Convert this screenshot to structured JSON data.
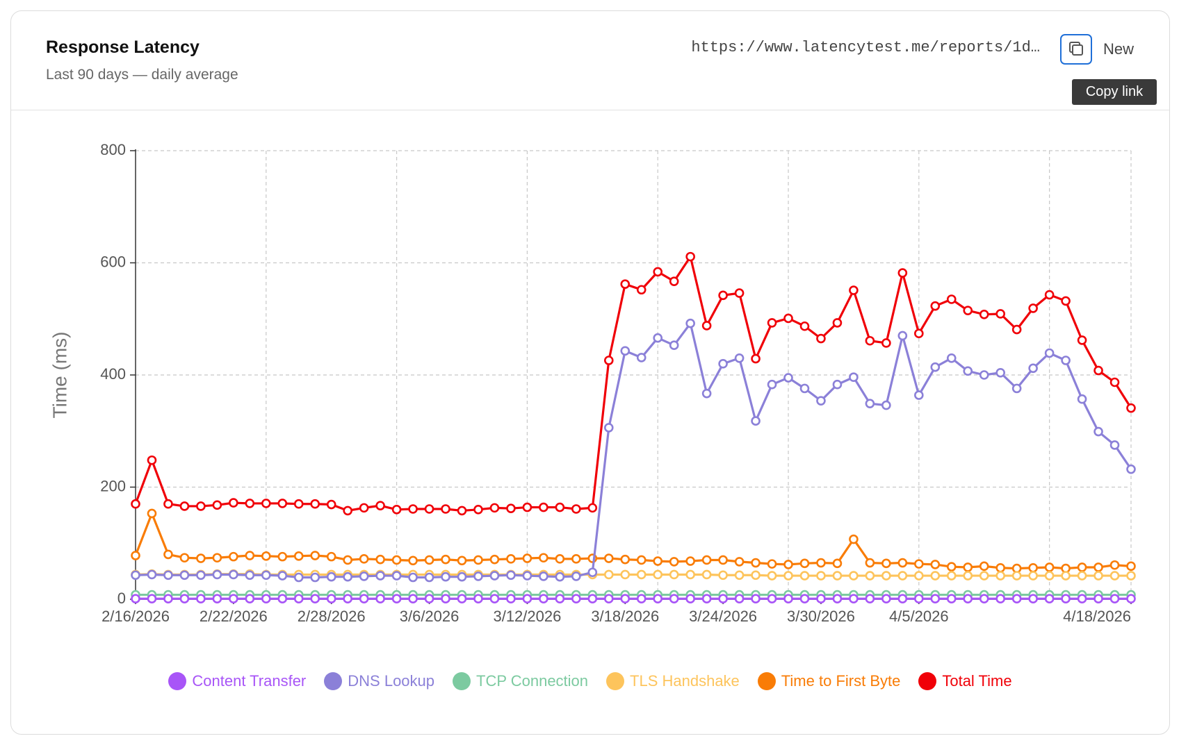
{
  "header": {
    "title": "Response Latency",
    "subtitle": "Last 90 days — daily average",
    "url": "https://www.latencytest.me/reports/1d…",
    "new_label": "New",
    "tooltip": "Copy link"
  },
  "chart_data": {
    "type": "line",
    "y_label": "Time (ms)",
    "categories": [
      "2/16/2026",
      null,
      null,
      null,
      null,
      null,
      "2/22/2026",
      null,
      null,
      null,
      null,
      null,
      "2/28/2026",
      null,
      null,
      null,
      null,
      null,
      "3/6/2026",
      null,
      null,
      null,
      null,
      null,
      "3/12/2026",
      null,
      null,
      null,
      null,
      null,
      "3/18/2026",
      null,
      null,
      null,
      null,
      null,
      "3/24/2026",
      null,
      null,
      null,
      null,
      null,
      "3/30/2026",
      null,
      null,
      null,
      null,
      null,
      "4/5/2026",
      null,
      null,
      null,
      null,
      null,
      null,
      null,
      null,
      null,
      null,
      null,
      null,
      "4/18/2026"
    ],
    "ylim": [
      0,
      800
    ],
    "yticks": [
      0,
      200,
      400,
      600,
      800
    ],
    "grid": true,
    "legend": "bottom",
    "series": [
      {
        "name": "Content Transfer",
        "color": "#a855f7",
        "values": [
          1,
          1,
          1,
          1,
          1,
          1,
          1,
          1,
          1,
          1,
          1,
          1,
          1,
          1,
          1,
          1,
          1,
          1,
          1,
          1,
          1,
          1,
          1,
          1,
          1,
          1,
          1,
          1,
          1,
          1,
          1,
          1,
          1,
          1,
          1,
          1,
          1,
          1,
          1,
          1,
          1,
          1,
          1,
          1,
          1,
          1,
          1,
          1,
          1,
          1,
          1,
          1,
          1,
          1,
          1,
          1,
          1,
          1,
          1,
          1,
          1,
          1
        ]
      },
      {
        "name": "DNS Lookup",
        "color": "#8b80d8",
        "values": [
          43,
          44,
          43,
          43,
          43,
          44,
          44,
          43,
          43,
          42,
          39,
          39,
          40,
          40,
          41,
          42,
          42,
          39,
          39,
          40,
          40,
          41,
          42,
          43,
          42,
          41,
          40,
          41,
          48,
          306,
          443,
          431,
          466,
          453,
          492,
          367,
          420,
          430,
          318,
          383,
          395,
          376,
          354,
          383,
          396,
          349,
          346,
          470,
          364,
          414,
          430,
          407,
          400,
          404,
          376,
          412,
          439,
          426,
          357,
          299,
          275,
          232
        ]
      },
      {
        "name": "TCP Connection",
        "color": "#7ccaa0",
        "values": [
          8,
          8,
          8,
          8,
          8,
          8,
          8,
          8,
          8,
          8,
          8,
          8,
          8,
          8,
          8,
          8,
          8,
          8,
          8,
          8,
          8,
          8,
          8,
          8,
          8,
          8,
          8,
          8,
          8,
          8,
          8,
          8,
          8,
          8,
          8,
          8,
          8,
          8,
          8,
          8,
          8,
          8,
          8,
          8,
          8,
          8,
          8,
          8,
          8,
          8,
          8,
          8,
          8,
          8,
          8,
          8,
          8,
          8,
          8,
          8,
          8,
          8
        ]
      },
      {
        "name": "TLS Handshake",
        "color": "#fdc45c",
        "values": [
          44,
          45,
          44,
          44,
          44,
          45,
          45,
          45,
          44,
          44,
          44,
          44,
          44,
          44,
          44,
          44,
          44,
          44,
          44,
          44,
          44,
          44,
          44,
          44,
          44,
          44,
          44,
          44,
          44,
          44,
          44,
          44,
          44,
          44,
          44,
          44,
          43,
          43,
          43,
          42,
          42,
          42,
          42,
          42,
          42,
          42,
          42,
          42,
          42,
          42,
          42,
          42,
          42,
          42,
          42,
          42,
          42,
          42,
          42,
          42,
          42,
          42
        ]
      },
      {
        "name": "Time to First Byte",
        "color": "#f97c06",
        "values": [
          78,
          153,
          80,
          74,
          73,
          74,
          76,
          78,
          77,
          76,
          77,
          78,
          76,
          70,
          72,
          71,
          70,
          69,
          70,
          71,
          69,
          70,
          71,
          72,
          73,
          74,
          72,
          72,
          73,
          73,
          71,
          70,
          68,
          67,
          68,
          70,
          70,
          67,
          65,
          63,
          62,
          64,
          65,
          64,
          107,
          65,
          64,
          65,
          63,
          62,
          58,
          57,
          59,
          56,
          55,
          56,
          57,
          55,
          57,
          57,
          61,
          59
        ]
      },
      {
        "name": "Total Time",
        "color": "#f00008",
        "values": [
          170,
          248,
          170,
          166,
          166,
          168,
          172,
          171,
          171,
          171,
          170,
          170,
          169,
          158,
          163,
          167,
          160,
          161,
          161,
          161,
          158,
          160,
          163,
          162,
          164,
          164,
          164,
          161,
          163,
          426,
          562,
          552,
          584,
          567,
          611,
          488,
          542,
          546,
          429,
          493,
          501,
          487,
          465,
          493,
          551,
          461,
          457,
          582,
          474,
          523,
          535,
          515,
          508,
          509,
          481,
          519,
          543,
          532,
          462,
          408,
          387,
          341
        ]
      }
    ]
  }
}
